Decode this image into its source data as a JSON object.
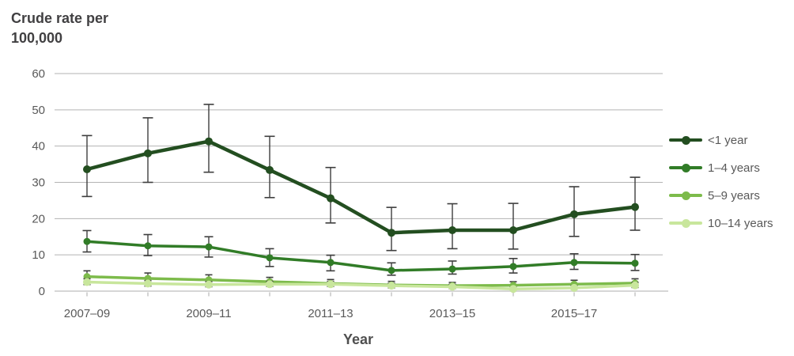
{
  "chart_data": {
    "type": "line",
    "title": "Crude rate per 100,000",
    "title_lines": [
      "Crude rate per",
      "100,000"
    ],
    "xlabel": "Year",
    "ylabel": "Crude rate per 100,000",
    "ylim": [
      0,
      60
    ],
    "y_ticks": [
      0,
      10,
      20,
      30,
      40,
      50,
      60
    ],
    "n_points": 10,
    "grid": true,
    "error_bars": true,
    "legend_position": "right",
    "x_tick_labels": [
      {
        "index": 0,
        "label": "2007–09"
      },
      {
        "index": 2,
        "label": "2009–11"
      },
      {
        "index": 4,
        "label": "2011–13"
      },
      {
        "index": 6,
        "label": "2013–15"
      },
      {
        "index": 8,
        "label": "2015–17"
      }
    ],
    "series": [
      {
        "name": "<1 year",
        "key": "under-1-year",
        "color": "#234e20",
        "values": [
          33.6,
          38.0,
          41.3,
          33.4,
          25.6,
          16.1,
          16.8,
          16.8,
          21.2,
          23.2
        ],
        "err_low": [
          26.1,
          30.0,
          32.8,
          25.8,
          18.8,
          11.2,
          11.7,
          11.6,
          15.1,
          16.8
        ],
        "err_high": [
          42.9,
          47.8,
          51.5,
          42.7,
          34.1,
          23.1,
          24.1,
          24.2,
          28.8,
          31.4
        ]
      },
      {
        "name": "1–4 years",
        "key": "1-4-years",
        "color": "#317c27",
        "values": [
          13.7,
          12.5,
          12.2,
          9.2,
          7.9,
          5.7,
          6.1,
          6.8,
          7.9,
          7.7
        ],
        "err_low": [
          10.8,
          9.8,
          9.4,
          6.8,
          5.6,
          4.4,
          4.7,
          5.0,
          6.0,
          5.7
        ],
        "err_high": [
          16.7,
          15.6,
          15.0,
          11.7,
          9.9,
          7.8,
          8.3,
          9.0,
          10.3,
          10.1
        ]
      },
      {
        "name": "5–9 years",
        "key": "5-9-years",
        "color": "#7dbb4b",
        "values": [
          4.0,
          3.5,
          3.1,
          2.6,
          2.1,
          1.7,
          1.5,
          1.6,
          1.9,
          2.2
        ],
        "err_low": [
          2.8,
          2.4,
          2.1,
          1.7,
          1.3,
          1.0,
          0.8,
          0.9,
          1.2,
          1.4
        ],
        "err_high": [
          5.6,
          5.0,
          4.5,
          3.8,
          3.2,
          2.7,
          2.4,
          2.6,
          3.0,
          3.4
        ]
      },
      {
        "name": "10–14 years",
        "key": "10-14-years",
        "color": "#c8e69c",
        "values": [
          2.5,
          2.1,
          1.8,
          1.9,
          1.9,
          1.5,
          1.2,
          0.6,
          0.9,
          1.6
        ],
        "err_low": [
          1.8,
          1.4,
          1.2,
          1.3,
          1.3,
          0.9,
          0.7,
          0.3,
          0.5,
          1.0
        ],
        "err_high": [
          3.4,
          2.9,
          2.6,
          2.7,
          2.7,
          2.2,
          1.9,
          1.1,
          1.5,
          2.4
        ]
      }
    ],
    "colors": {
      "grid": "#b3b3b3",
      "baseline": "#d6d6d6",
      "tick": "#c6c6c6",
      "error_bar": "#3d3d3d",
      "axis_text": "#595959",
      "title_text": "#414042"
    }
  }
}
